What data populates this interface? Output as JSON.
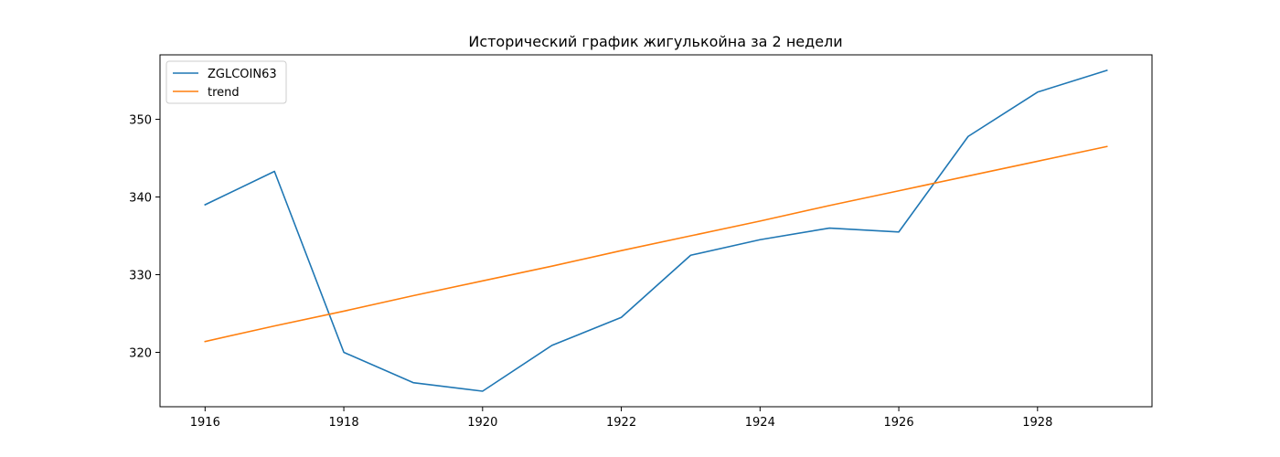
{
  "chart_data": {
    "type": "line",
    "title": "Исторический график жигулькойна за 2 недели",
    "xlabel": "",
    "ylabel": "",
    "x": [
      1916,
      1917,
      1918,
      1919,
      1920,
      1921,
      1922,
      1923,
      1924,
      1925,
      1926,
      1927,
      1928,
      1929
    ],
    "xlim": [
      1915.35,
      1929.65
    ],
    "ylim": [
      313.0,
      358.3
    ],
    "xticks": [
      1916,
      1918,
      1920,
      1922,
      1924,
      1926,
      1928
    ],
    "yticks": [
      320,
      330,
      340,
      350
    ],
    "grid": false,
    "legend_position": "top-left",
    "series": [
      {
        "name": "ZGLCOIN63",
        "color": "#1f77b4",
        "values": [
          339.0,
          343.3,
          320.0,
          316.1,
          315.0,
          320.9,
          324.5,
          332.5,
          334.5,
          336.0,
          335.5,
          347.8,
          353.5,
          356.3
        ]
      },
      {
        "name": "trend",
        "color": "#ff7f0e",
        "values": [
          321.4,
          323.4,
          325.3,
          327.3,
          329.2,
          331.1,
          333.1,
          335.0,
          336.9,
          338.9,
          340.8,
          342.7,
          344.6,
          346.5
        ]
      }
    ]
  }
}
